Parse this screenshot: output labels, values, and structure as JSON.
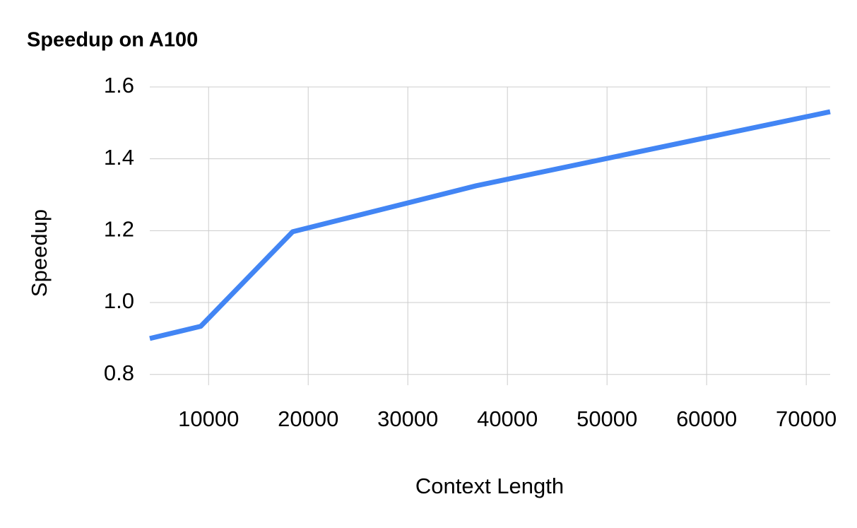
{
  "chart_data": {
    "type": "line",
    "title": "Speedup on A100",
    "x_label": "Context Length",
    "y_label": "Speedup",
    "x": [
      4096,
      9216,
      18432,
      36864,
      72400
    ],
    "series": [
      {
        "name": "Speedup",
        "color": "#4285f4",
        "values": [
          0.9,
          0.934,
          1.197,
          1.325,
          1.531
        ]
      }
    ],
    "xlim": [
      4096,
      72400
    ],
    "xticks": [
      10000,
      20000,
      30000,
      40000,
      50000,
      60000,
      70000
    ],
    "ylim": [
      0.77,
      1.6
    ],
    "yticks": [
      {
        "value": 0.8,
        "label": "0.8"
      },
      {
        "value": 1.0,
        "label": "1.0"
      },
      {
        "value": 1.2,
        "label": "1.2"
      },
      {
        "value": 1.4,
        "label": "1.4"
      },
      {
        "value": 1.6,
        "label": "1.6"
      }
    ],
    "grid": true
  }
}
